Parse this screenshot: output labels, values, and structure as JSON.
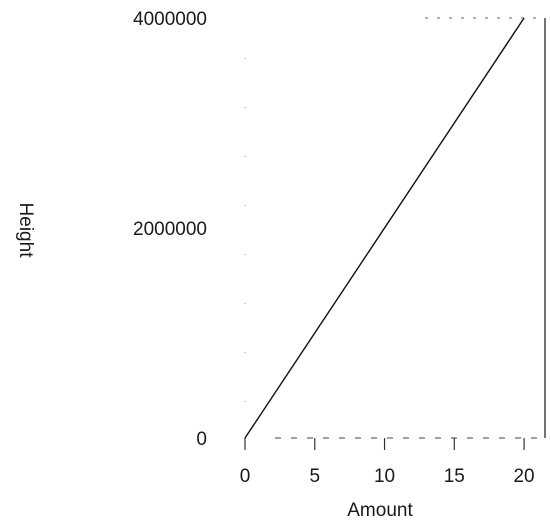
{
  "chart_data": {
    "type": "line",
    "xlabel": "Amount",
    "ylabel": "Height",
    "x_ticks": [
      0,
      5,
      10,
      15,
      20
    ],
    "y_ticks": [
      0,
      2000000,
      4000000
    ],
    "x_tick_labels": [
      "0",
      "5",
      "10",
      "15",
      "20"
    ],
    "y_tick_labels": [
      "0",
      "2000000",
      "4000000"
    ],
    "xlim": [
      0,
      21.5
    ],
    "ylim": [
      0,
      4000000
    ],
    "grid": false,
    "series": [
      {
        "x": [
          0,
          20
        ],
        "y": [
          0,
          4000000
        ]
      }
    ]
  }
}
